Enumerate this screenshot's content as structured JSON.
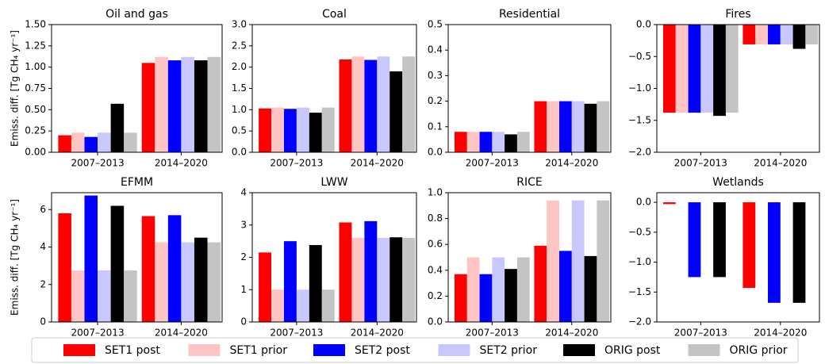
{
  "chart_data": [
    {
      "type": "bar",
      "title": "Oil and gas",
      "ylabel": "Emiss. diff. [Tg CH₄ yr⁻¹]",
      "categories": [
        "2007–2013",
        "2014–2020"
      ],
      "series": [
        {
          "name": "SET1 post",
          "color": "#ff0000",
          "values": [
            0.2,
            1.05
          ]
        },
        {
          "name": "SET1 prior",
          "color": "#ffc4c4",
          "values": [
            0.23,
            1.12
          ]
        },
        {
          "name": "SET2 post",
          "color": "#0000ff",
          "values": [
            0.18,
            1.08
          ]
        },
        {
          "name": "SET2 prior",
          "color": "#c8c8ff",
          "values": [
            0.23,
            1.12
          ]
        },
        {
          "name": "ORIG post",
          "color": "#000000",
          "values": [
            0.57,
            1.08
          ]
        },
        {
          "name": "ORIG prior",
          "color": "#c4c4c4",
          "values": [
            0.23,
            1.12
          ]
        }
      ],
      "ylim": [
        0,
        1.5
      ],
      "yticks": [
        {
          "value": 0,
          "label": "0.00"
        },
        0.25,
        {
          "value": 0.5,
          "label": "0.50"
        },
        0.75,
        {
          "value": 1,
          "label": "1.00"
        },
        1.25,
        {
          "value": 1.5,
          "label": "1.50"
        }
      ]
    },
    {
      "type": "bar",
      "title": "Coal",
      "categories": [
        "2007–2013",
        "2014–2020"
      ],
      "series": [
        {
          "color": "#ff0000",
          "values": [
            1.03,
            2.18
          ]
        },
        {
          "color": "#ffc4c4",
          "values": [
            1.05,
            2.25
          ]
        },
        {
          "color": "#0000ff",
          "values": [
            1.02,
            2.17
          ]
        },
        {
          "color": "#c8c8ff",
          "values": [
            1.05,
            2.25
          ]
        },
        {
          "color": "#000000",
          "values": [
            0.93,
            1.9
          ]
        },
        {
          "color": "#c4c4c4",
          "values": [
            1.05,
            2.25
          ]
        }
      ],
      "ylim": [
        0,
        3
      ],
      "yticks": [
        {
          "value": 0,
          "label": "0.0"
        },
        0.5,
        {
          "value": 1,
          "label": "1.0"
        },
        1.5,
        {
          "value": 2,
          "label": "2.0"
        },
        2.5,
        {
          "value": 3,
          "label": "3.0"
        }
      ]
    },
    {
      "type": "bar",
      "title": "Residential",
      "categories": [
        "2007–2013",
        "2014–2020"
      ],
      "series": [
        {
          "color": "#ff0000",
          "values": [
            0.08,
            0.2
          ]
        },
        {
          "color": "#ffc4c4",
          "values": [
            0.08,
            0.2
          ]
        },
        {
          "color": "#0000ff",
          "values": [
            0.08,
            0.2
          ]
        },
        {
          "color": "#c8c8ff",
          "values": [
            0.08,
            0.2
          ]
        },
        {
          "color": "#000000",
          "values": [
            0.07,
            0.19
          ]
        },
        {
          "color": "#c4c4c4",
          "values": [
            0.08,
            0.2
          ]
        }
      ],
      "ylim": [
        0,
        0.5
      ],
      "yticks": [
        {
          "value": 0,
          "label": "0.0"
        },
        0.1,
        0.2,
        0.3,
        0.4,
        0.5
      ]
    },
    {
      "type": "bar",
      "title": "Fires",
      "categories": [
        "2007–2013",
        "2014–2020"
      ],
      "series": [
        {
          "color": "#ff0000",
          "values": [
            -1.38,
            -0.31
          ]
        },
        {
          "color": "#ffc4c4",
          "values": [
            -1.38,
            -0.31
          ]
        },
        {
          "color": "#0000ff",
          "values": [
            -1.38,
            -0.31
          ]
        },
        {
          "color": "#c8c8ff",
          "values": [
            -1.38,
            -0.31
          ]
        },
        {
          "color": "#000000",
          "values": [
            -1.43,
            -0.38
          ]
        },
        {
          "color": "#c4c4c4",
          "values": [
            -1.38,
            -0.31
          ]
        }
      ],
      "ylim": [
        -2,
        0
      ],
      "yticks": [
        {
          "value": 0,
          "label": "0.0"
        },
        {
          "value": -0.5,
          "label": "−0.5"
        },
        {
          "value": -1,
          "label": "−1.0"
        },
        {
          "value": -1.5,
          "label": "−1.5"
        },
        {
          "value": -2,
          "label": "−2.0"
        }
      ]
    },
    {
      "type": "bar",
      "title": "EFMM",
      "ylabel": "Emiss. diff. [Tg CH₄ yr⁻¹]",
      "categories": [
        "2007–2013",
        "2014–2020"
      ],
      "series": [
        {
          "color": "#ff0000",
          "values": [
            5.8,
            5.65
          ]
        },
        {
          "color": "#ffc4c4",
          "values": [
            2.75,
            4.25
          ]
        },
        {
          "color": "#0000ff",
          "values": [
            6.75,
            5.7
          ]
        },
        {
          "color": "#c8c8ff",
          "values": [
            2.75,
            4.25
          ]
        },
        {
          "color": "#000000",
          "values": [
            6.2,
            4.5
          ]
        },
        {
          "color": "#c4c4c4",
          "values": [
            2.75,
            4.25
          ]
        }
      ],
      "ylim": [
        0,
        6.9
      ],
      "yticks": [
        0,
        2,
        4,
        6
      ]
    },
    {
      "type": "bar",
      "title": "LWW",
      "categories": [
        "2007–2013",
        "2014–2020"
      ],
      "series": [
        {
          "color": "#ff0000",
          "values": [
            2.15,
            3.08
          ]
        },
        {
          "color": "#ffc4c4",
          "values": [
            1.0,
            2.6
          ]
        },
        {
          "color": "#0000ff",
          "values": [
            2.5,
            3.12
          ]
        },
        {
          "color": "#c8c8ff",
          "values": [
            1.0,
            2.6
          ]
        },
        {
          "color": "#000000",
          "values": [
            2.38,
            2.62
          ]
        },
        {
          "color": "#c4c4c4",
          "values": [
            1.0,
            2.6
          ]
        }
      ],
      "ylim": [
        0,
        4
      ],
      "yticks": [
        0,
        1,
        2,
        3,
        4
      ]
    },
    {
      "type": "bar",
      "title": "RICE",
      "categories": [
        "2007–2013",
        "2014–2020"
      ],
      "series": [
        {
          "color": "#ff0000",
          "values": [
            0.37,
            0.59
          ]
        },
        {
          "color": "#ffc4c4",
          "values": [
            0.5,
            0.94
          ]
        },
        {
          "color": "#0000ff",
          "values": [
            0.37,
            0.55
          ]
        },
        {
          "color": "#c8c8ff",
          "values": [
            0.5,
            0.94
          ]
        },
        {
          "color": "#000000",
          "values": [
            0.41,
            0.51
          ]
        },
        {
          "color": "#c4c4c4",
          "values": [
            0.5,
            0.94
          ]
        }
      ],
      "ylim": [
        0,
        1.0
      ],
      "yticks": [
        {
          "value": 0,
          "label": "0.0"
        },
        0.2,
        0.4,
        0.6,
        0.8,
        {
          "value": 1,
          "label": "1.0"
        }
      ]
    },
    {
      "type": "bar",
      "title": "Wetlands",
      "categories": [
        "2007–2013",
        "2014–2020"
      ],
      "series": [
        {
          "color": "#ff0000",
          "values": [
            -0.03,
            -1.43
          ]
        },
        {
          "color": "#ffc4c4",
          "values": [
            0,
            0
          ]
        },
        {
          "color": "#0000ff",
          "values": [
            -1.25,
            -1.68
          ]
        },
        {
          "color": "#c8c8ff",
          "values": [
            0,
            0
          ]
        },
        {
          "color": "#000000",
          "values": [
            -1.25,
            -1.68
          ]
        },
        {
          "color": "#c4c4c4",
          "values": [
            0,
            0
          ]
        }
      ],
      "ylim": [
        -2,
        0.16
      ],
      "yticks": [
        {
          "value": 0,
          "label": "0.0"
        },
        {
          "value": -0.5,
          "label": "−0.5"
        },
        {
          "value": -1,
          "label": "−1.0"
        },
        {
          "value": -1.5,
          "label": "−1.5"
        },
        {
          "value": -2,
          "label": "−2.0"
        }
      ]
    }
  ]
}
